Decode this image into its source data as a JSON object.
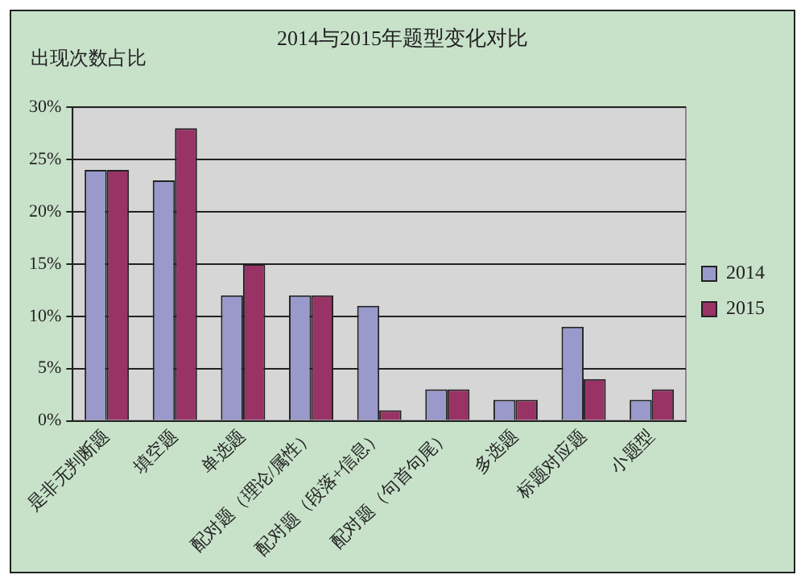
{
  "chart_data": {
    "type": "bar",
    "title": "2014与2015年题型变化对比",
    "ylabel": "出现次数占比",
    "categories": [
      "是非无判断题",
      "填空题",
      "单选题",
      "配对题（理论/属性）",
      "配对题（段落+信息）",
      "配对题（句首句尾）",
      "多选题",
      "标题对应题",
      "小题型"
    ],
    "series": [
      {
        "name": "2014",
        "color": "#9999cc",
        "values": [
          24,
          23,
          12,
          12,
          11,
          3,
          2,
          9,
          2
        ]
      },
      {
        "name": "2015",
        "color": "#993366",
        "values": [
          24,
          28,
          15,
          12,
          1,
          3,
          2,
          4,
          3
        ]
      }
    ],
    "ylim": [
      0,
      30
    ],
    "yticks": [
      {
        "value": 0,
        "label": "0%"
      },
      {
        "value": 5,
        "label": "5%"
      },
      {
        "value": 10,
        "label": "10%"
      },
      {
        "value": 15,
        "label": "15%"
      },
      {
        "value": 20,
        "label": "20%"
      },
      {
        "value": 25,
        "label": "25%"
      },
      {
        "value": 30,
        "label": "30%"
      }
    ],
    "grid": "y",
    "legend": "right"
  }
}
